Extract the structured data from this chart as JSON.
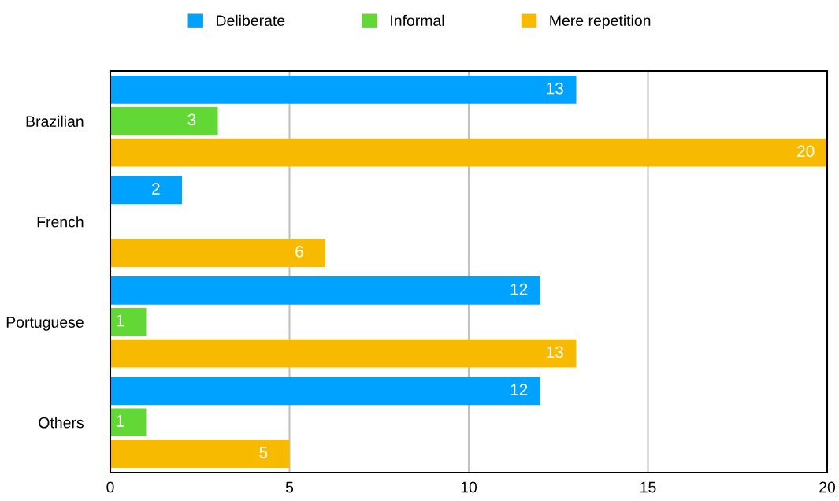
{
  "chart_data": {
    "type": "bar",
    "orientation": "horizontal",
    "categories": [
      "Brazilian",
      "French",
      "Portuguese",
      "Others"
    ],
    "series": [
      {
        "name": "Deliberate",
        "color": "#00a2ff",
        "values": [
          13,
          2,
          12,
          12
        ]
      },
      {
        "name": "Informal",
        "color": "#61d836",
        "values": [
          3,
          null,
          1,
          1
        ]
      },
      {
        "name": "Mere repetition",
        "color": "#f8ba00",
        "values": [
          20,
          6,
          13,
          5
        ]
      }
    ],
    "xlim": [
      0,
      20
    ],
    "xticks": [
      0,
      5,
      10,
      15,
      20
    ],
    "grid": "x",
    "legend": "top",
    "data_labels": true
  }
}
